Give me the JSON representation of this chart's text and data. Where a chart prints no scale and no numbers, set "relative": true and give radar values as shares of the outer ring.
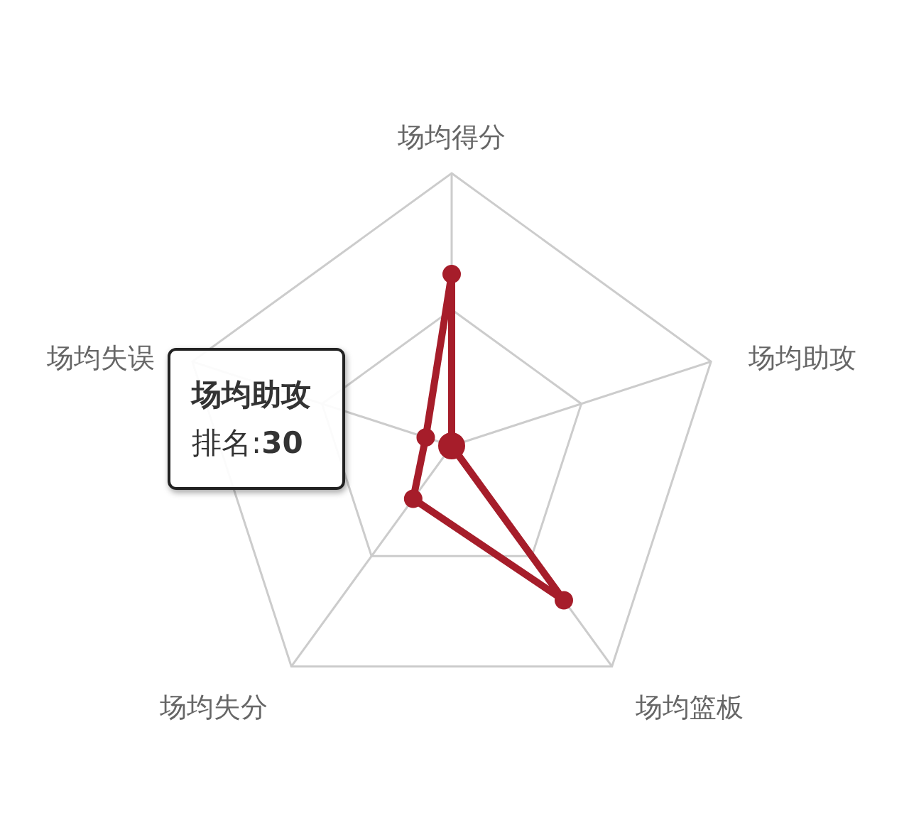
{
  "chart_data": {
    "type": "radar",
    "categories": [
      "场均得分",
      "场均助攻",
      "场均篮板",
      "场均失分",
      "场均失误"
    ],
    "series": [
      {
        "color": "#a61d2a",
        "values": [
          0.63,
          0,
          0.7,
          0.24,
          0.1
        ]
      }
    ],
    "relative": true,
    "grid": true,
    "marker": "circle",
    "line_style": "solid",
    "annotations": [
      {
        "text": "场均助攻",
        "x": "场均助攻"
      },
      {
        "text": "排名:30",
        "x": "场均助攻"
      }
    ]
  }
}
